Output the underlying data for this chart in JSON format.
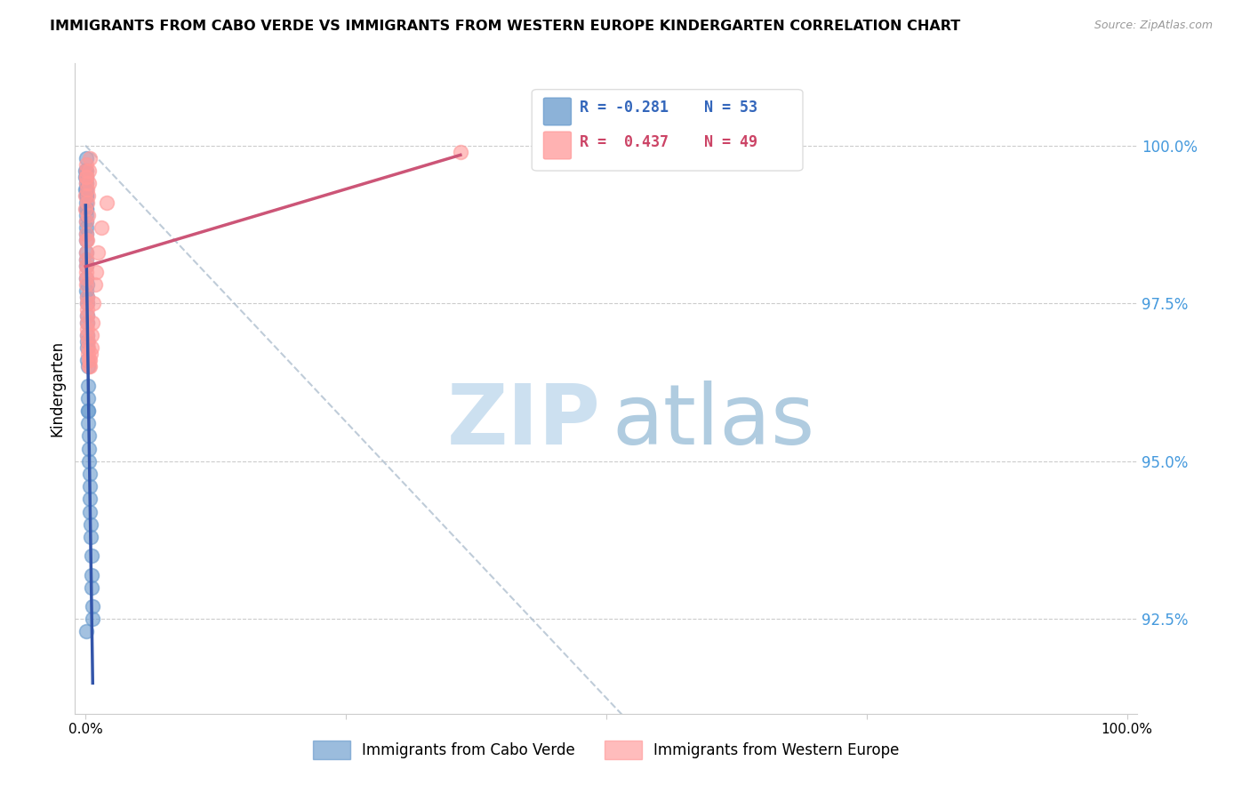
{
  "title": "IMMIGRANTS FROM CABO VERDE VS IMMIGRANTS FROM WESTERN EUROPE KINDERGARTEN CORRELATION CHART",
  "source": "Source: ZipAtlas.com",
  "ylabel": "Kindergarten",
  "legend_label_blue": "Immigrants from Cabo Verde",
  "legend_label_pink": "Immigrants from Western Europe",
  "R_blue": -0.281,
  "N_blue": 53,
  "R_pink": 0.437,
  "N_pink": 49,
  "blue_color": "#6699CC",
  "pink_color": "#FF9999",
  "trend_blue": "#3355AA",
  "trend_pink": "#CC5577",
  "right_yticks": [
    100.0,
    97.5,
    95.0,
    92.5
  ],
  "right_ytick_labels": [
    "100.0%",
    "97.5%",
    "95.0%",
    "92.5%"
  ],
  "ylim": [
    91.0,
    101.3
  ],
  "blue_x": [
    0.02,
    0.03,
    0.03,
    0.04,
    0.04,
    0.05,
    0.05,
    0.05,
    0.06,
    0.06,
    0.06,
    0.07,
    0.07,
    0.08,
    0.08,
    0.09,
    0.09,
    0.1,
    0.1,
    0.11,
    0.12,
    0.12,
    0.13,
    0.14,
    0.15,
    0.16,
    0.17,
    0.18,
    0.19,
    0.2,
    0.22,
    0.24,
    0.25,
    0.27,
    0.28,
    0.3,
    0.32,
    0.35,
    0.38,
    0.4,
    0.42,
    0.45,
    0.48,
    0.5,
    0.55,
    0.58,
    0.6,
    0.65,
    0.7,
    0.12,
    0.18,
    0.25,
    0.1
  ],
  "blue_y": [
    99.5,
    99.6,
    99.3,
    99.4,
    99.2,
    99.8,
    99.5,
    99.1,
    99.6,
    99.3,
    99.0,
    99.2,
    98.9,
    99.0,
    98.7,
    98.8,
    98.5,
    98.6,
    98.3,
    98.1,
    98.2,
    97.9,
    97.8,
    97.6,
    97.5,
    97.3,
    97.2,
    97.0,
    96.9,
    96.8,
    96.5,
    96.2,
    96.0,
    95.8,
    95.6,
    95.4,
    95.2,
    95.0,
    94.8,
    94.6,
    94.4,
    94.2,
    94.0,
    93.8,
    93.5,
    93.2,
    93.0,
    92.7,
    92.5,
    97.7,
    96.6,
    95.8,
    92.3
  ],
  "pink_x": [
    0.02,
    0.03,
    0.04,
    0.05,
    0.05,
    0.06,
    0.07,
    0.08,
    0.09,
    0.1,
    0.1,
    0.11,
    0.12,
    0.13,
    0.14,
    0.15,
    0.16,
    0.17,
    0.18,
    0.2,
    0.22,
    0.25,
    0.28,
    0.3,
    0.35,
    0.4,
    0.45,
    0.5,
    0.55,
    0.6,
    0.7,
    0.8,
    0.9,
    1.0,
    1.2,
    1.5,
    2.0,
    0.2,
    0.25,
    0.3,
    0.35,
    0.4,
    36.0,
    0.08,
    0.09,
    0.12,
    0.15,
    0.18,
    0.22
  ],
  "pink_y": [
    99.2,
    99.0,
    98.8,
    99.4,
    98.6,
    98.5,
    98.3,
    98.1,
    97.9,
    99.5,
    98.0,
    98.2,
    97.8,
    97.6,
    97.5,
    97.4,
    97.3,
    97.2,
    97.1,
    97.0,
    96.9,
    96.8,
    96.7,
    96.6,
    96.5,
    96.5,
    96.6,
    96.7,
    96.8,
    97.0,
    97.2,
    97.5,
    97.8,
    98.0,
    98.3,
    98.7,
    99.1,
    98.5,
    99.2,
    99.4,
    99.6,
    99.8,
    99.9,
    99.6,
    99.7,
    99.5,
    99.3,
    99.1,
    98.9
  ]
}
